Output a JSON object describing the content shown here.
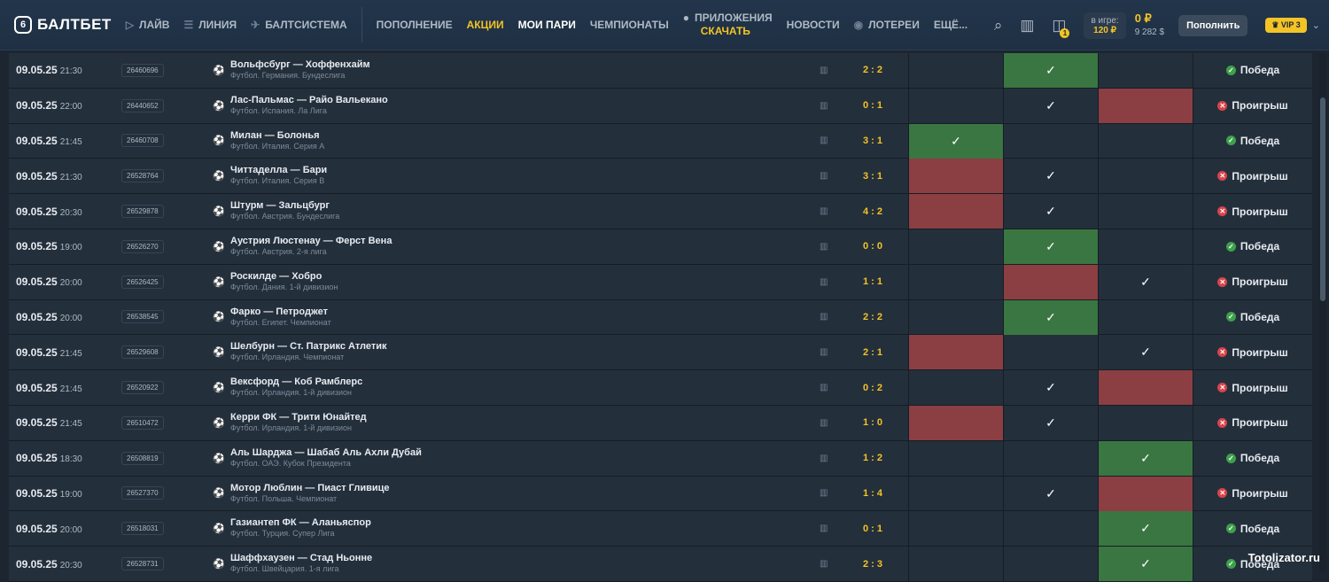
{
  "header": {
    "logo_text": "БАЛТБЕТ",
    "nav": [
      {
        "label": "ЛАЙВ",
        "icon": "play-icon"
      },
      {
        "label": "ЛИНИЯ",
        "icon": "list-icon"
      },
      {
        "label": "БАЛТСИСТЕМА",
        "icon": "rocket-icon"
      }
    ],
    "nav2": [
      "ПОПОЛНЕНИЕ",
      "АКЦИИ",
      "МОИ ПАРИ",
      "ЧЕМПИОНАТЫ"
    ],
    "apps_top": "ПРИЛОЖЕНИЯ",
    "apps_bottom": "СКАЧАТЬ",
    "nav3": [
      "НОВОСТИ",
      "ЛОТЕРЕИ",
      "ЕЩЁ..."
    ],
    "notification_count": "1",
    "ingame_label": "в игре:",
    "ingame_value": "120 ₽",
    "balance_main": "0 ₽",
    "balance_sub": "9 282 $",
    "topup_label": "Пополнить",
    "vip_label": "VIP 3"
  },
  "rows": [
    {
      "date": "09.05.25",
      "time": "21:30",
      "id": "26460696",
      "match": "Вольфсбург — Хоффенхайм",
      "league": "Футбол. Германия. Бундеслига",
      "score": "2 : 2",
      "cells": [
        "",
        "g",
        ""
      ],
      "checks": [
        false,
        true,
        false
      ],
      "result": "Победа",
      "win": true
    },
    {
      "date": "09.05.25",
      "time": "22:00",
      "id": "26440652",
      "match": "Лас-Пальмас — Райо Вальекано",
      "league": "Футбол. Испания. Ла Лига",
      "score": "0 : 1",
      "cells": [
        "",
        "",
        "r"
      ],
      "checks": [
        false,
        true,
        false
      ],
      "result": "Проигрыш",
      "win": false
    },
    {
      "date": "09.05.25",
      "time": "21:45",
      "id": "26460708",
      "match": "Милан — Болонья",
      "league": "Футбол. Италия. Серия А",
      "score": "3 : 1",
      "cells": [
        "g",
        "",
        ""
      ],
      "checks": [
        true,
        false,
        false
      ],
      "result": "Победа",
      "win": true
    },
    {
      "date": "09.05.25",
      "time": "21:30",
      "id": "26528764",
      "match": "Читтаделла — Бари",
      "league": "Футбол. Италия. Серия В",
      "score": "3 : 1",
      "cells": [
        "r",
        "",
        ""
      ],
      "checks": [
        false,
        true,
        false
      ],
      "result": "Проигрыш",
      "win": false
    },
    {
      "date": "09.05.25",
      "time": "20:30",
      "id": "26529878",
      "match": "Штурм — Зальцбург",
      "league": "Футбол. Австрия. Бундеслига",
      "score": "4 : 2",
      "cells": [
        "r",
        "",
        ""
      ],
      "checks": [
        false,
        true,
        false
      ],
      "result": "Проигрыш",
      "win": false
    },
    {
      "date": "09.05.25",
      "time": "19:00",
      "id": "26526270",
      "match": "Аустрия Люстенау — Ферст Вена",
      "league": "Футбол. Австрия. 2-я лига",
      "score": "0 : 0",
      "cells": [
        "",
        "g",
        ""
      ],
      "checks": [
        false,
        true,
        false
      ],
      "result": "Победа",
      "win": true
    },
    {
      "date": "09.05.25",
      "time": "20:00",
      "id": "26526425",
      "match": "Роскилде — Хобро",
      "league": "Футбол. Дания. 1-й дивизион",
      "score": "1 : 1",
      "cells": [
        "",
        "r",
        ""
      ],
      "checks": [
        false,
        false,
        true
      ],
      "result": "Проигрыш",
      "win": false
    },
    {
      "date": "09.05.25",
      "time": "20:00",
      "id": "26538545",
      "match": "Фарко — Петроджет",
      "league": "Футбол. Египет. Чемпионат",
      "score": "2 : 2",
      "cells": [
        "",
        "g",
        ""
      ],
      "checks": [
        false,
        true,
        false
      ],
      "result": "Победа",
      "win": true
    },
    {
      "date": "09.05.25",
      "time": "21:45",
      "id": "26529608",
      "match": "Шелбурн — Ст. Патрикс Атлетик",
      "league": "Футбол. Ирландия. Чемпионат",
      "score": "2 : 1",
      "cells": [
        "r",
        "",
        ""
      ],
      "checks": [
        false,
        false,
        true
      ],
      "result": "Проигрыш",
      "win": false
    },
    {
      "date": "09.05.25",
      "time": "21:45",
      "id": "26520922",
      "match": "Вексфорд — Коб Рамблерс",
      "league": "Футбол. Ирландия. 1-й дивизион",
      "score": "0 : 2",
      "cells": [
        "",
        "",
        "r"
      ],
      "checks": [
        false,
        true,
        false
      ],
      "result": "Проигрыш",
      "win": false
    },
    {
      "date": "09.05.25",
      "time": "21:45",
      "id": "26510472",
      "match": "Керри ФК — Трити Юнайтед",
      "league": "Футбол. Ирландия. 1-й дивизион",
      "score": "1 : 0",
      "cells": [
        "r",
        "",
        ""
      ],
      "checks": [
        false,
        true,
        false
      ],
      "result": "Проигрыш",
      "win": false
    },
    {
      "date": "09.05.25",
      "time": "18:30",
      "id": "26508819",
      "match": "Аль Шарджа — Шабаб Аль Ахли Дубай",
      "league": "Футбол. ОАЭ. Кубок Президента",
      "score": "1 : 2",
      "cells": [
        "",
        "",
        "g"
      ],
      "checks": [
        false,
        false,
        true
      ],
      "result": "Победа",
      "win": true
    },
    {
      "date": "09.05.25",
      "time": "19:00",
      "id": "26527370",
      "match": "Мотор Люблин — Пиаст Гливице",
      "league": "Футбол. Польша. Чемпионат",
      "score": "1 : 4",
      "cells": [
        "",
        "",
        "r"
      ],
      "checks": [
        false,
        true,
        false
      ],
      "result": "Проигрыш",
      "win": false
    },
    {
      "date": "09.05.25",
      "time": "20:00",
      "id": "26518031",
      "match": "Газиантеп ФК — Аланьяспор",
      "league": "Футбол. Турция. Супер Лига",
      "score": "0 : 1",
      "cells": [
        "",
        "",
        "g"
      ],
      "checks": [
        false,
        false,
        true
      ],
      "result": "Победа",
      "win": true
    },
    {
      "date": "09.05.25",
      "time": "20:30",
      "id": "26528731",
      "match": "Шаффхаузен — Стад Ньонне",
      "league": "Футбол. Швейцария. 1-я лига",
      "score": "2 : 3",
      "cells": [
        "",
        "",
        "g"
      ],
      "checks": [
        false,
        false,
        true
      ],
      "result": "Победа",
      "win": true
    }
  ],
  "watermark": "Totolizator.ru"
}
